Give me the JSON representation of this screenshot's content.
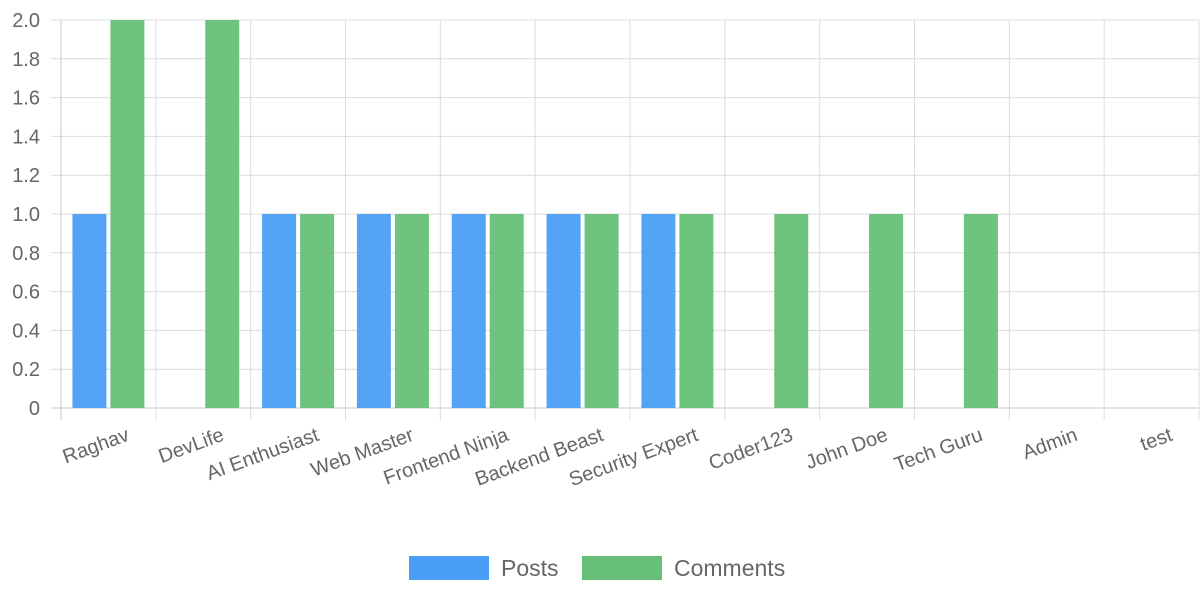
{
  "chart_data": {
    "type": "bar",
    "categories": [
      "Raghav",
      "DevLife",
      "AI Enthusiast",
      "Web Master",
      "Frontend Ninja",
      "Backend Beast",
      "Security Expert",
      "Coder123",
      "John Doe",
      "Tech Guru",
      "Admin",
      "test"
    ],
    "series": [
      {
        "name": "Posts",
        "color": "#4a9ef7",
        "values": [
          1,
          0,
          1,
          1,
          1,
          1,
          1,
          0,
          0,
          0,
          0,
          0
        ]
      },
      {
        "name": "Comments",
        "color": "#66c077",
        "values": [
          2,
          2,
          1,
          1,
          1,
          1,
          1,
          1,
          1,
          1,
          0,
          0
        ]
      }
    ],
    "ylim": [
      0,
      2
    ],
    "yticks": [
      "0",
      "0.2",
      "0.4",
      "0.6",
      "0.8",
      "1.0",
      "1.2",
      "1.4",
      "1.6",
      "1.8",
      "2.0"
    ],
    "grid": true,
    "legend_position": "bottom"
  }
}
